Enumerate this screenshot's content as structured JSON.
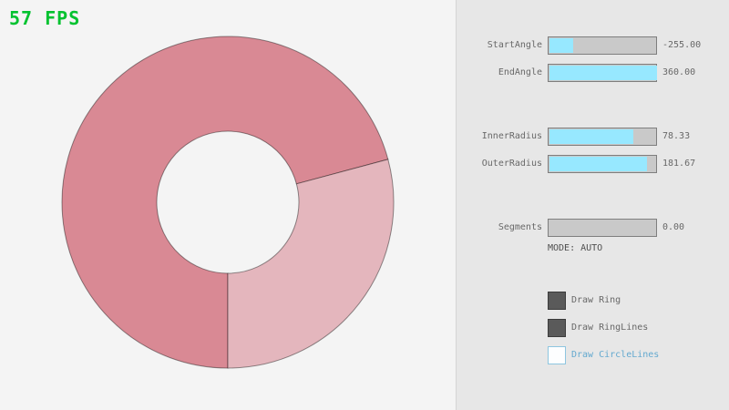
{
  "fps_label": "57 FPS",
  "colors": {
    "fps_green": "#00c22f",
    "slider_fill": "#97e8ff",
    "accent_blue": "#5bb2d9",
    "panel_bg": "#e7e7e7"
  },
  "ring": {
    "fill_overlap": "#d98994",
    "fill_single": "#e4b6bd",
    "line_color": "rgba(0,0,0,0.42)"
  },
  "panel": {
    "sliders": [
      {
        "label": "StartAngle",
        "value": "-255.00",
        "fill_pct": 22
      },
      {
        "label": "EndAngle",
        "value": "360.00",
        "fill_pct": 100
      },
      {
        "label": "InnerRadius",
        "value": "78.33",
        "fill_pct": 78
      },
      {
        "label": "OuterRadius",
        "value": "181.67",
        "fill_pct": 91
      },
      {
        "label": "Segments",
        "value": "0.00",
        "fill_pct": 0
      }
    ],
    "mode_label": "MODE: AUTO",
    "checkboxes": [
      {
        "label": "Draw Ring",
        "checked": true
      },
      {
        "label": "Draw RingLines",
        "checked": true
      },
      {
        "label": "Draw CircleLines",
        "checked": false
      }
    ]
  }
}
